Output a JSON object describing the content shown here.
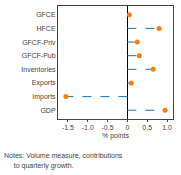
{
  "chart_data": {
    "type": "dot",
    "categories": [
      "GFCE",
      "HFCE",
      "GFCF-Priv",
      "GFCF-Pub",
      "Inventories",
      "Exports",
      "Imports",
      "GDP"
    ],
    "values": [
      0.05,
      0.8,
      0.25,
      0.3,
      0.65,
      0.1,
      -1.55,
      0.95
    ],
    "xlim": [
      -1.75,
      1.15
    ],
    "xticks": [
      -1.5,
      {
        "value": -1.0,
        "label": "-1.0"
      },
      -0.5,
      0,
      0.5,
      {
        "value": 1.0,
        "label": "1.0"
      }
    ],
    "xlabel": "% points",
    "line_style": "dashed",
    "grid": false,
    "annotations": [
      "Notes: Volume measure, contributions",
      "     to quarterly growth."
    ]
  }
}
